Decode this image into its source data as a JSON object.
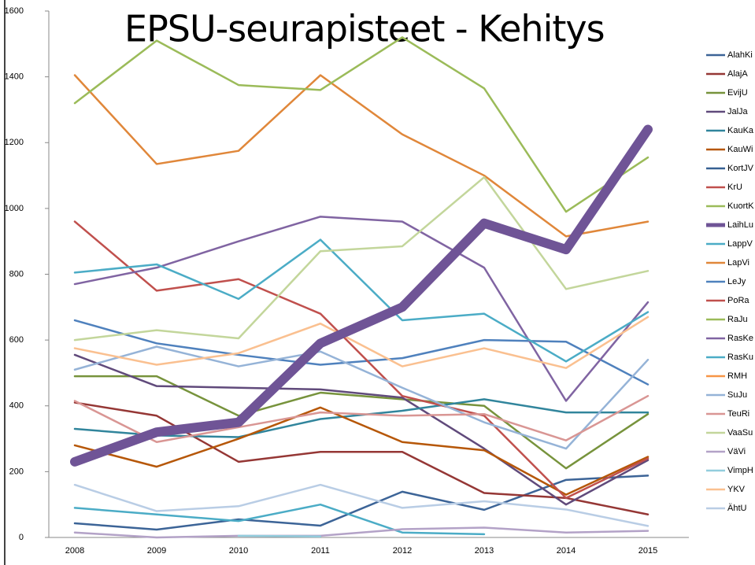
{
  "chart_data": {
    "type": "line",
    "title": "EPSU-seurapisteet - Kehitys",
    "x": [
      "2008",
      "2009",
      "2010",
      "2011",
      "2012",
      "2013",
      "2014",
      "2015"
    ],
    "ylim": [
      0,
      1600
    ],
    "yticks": [
      0,
      200,
      400,
      600,
      800,
      1000,
      1200,
      1400,
      1600
    ],
    "legend": "right",
    "series": [
      {
        "name": "AlahKi",
        "color": "#3c6497",
        "values": [
          43,
          24,
          55,
          36,
          139,
          84,
          175,
          188
        ]
      },
      {
        "name": "AlajA",
        "color": "#953735",
        "values": [
          410,
          370,
          230,
          260,
          260,
          135,
          120,
          70
        ]
      },
      {
        "name": "EvijU",
        "color": "#77933c",
        "values": [
          490,
          490,
          370,
          440,
          420,
          400,
          210,
          375
        ]
      },
      {
        "name": "JalJa",
        "color": "#604a7b",
        "values": [
          555,
          460,
          455,
          450,
          425,
          270,
          100,
          235
        ]
      },
      {
        "name": "KauKa",
        "color": "#31859c",
        "values": [
          330,
          310,
          305,
          360,
          385,
          420,
          380,
          380
        ]
      },
      {
        "name": "KauWi",
        "color": "#b65708",
        "values": [
          280,
          215,
          300,
          395,
          290,
          265,
          130,
          245
        ]
      },
      {
        "name": "KortJV",
        "color": "#376092",
        "values": [
          null,
          null,
          null,
          null,
          null,
          null,
          null,
          null
        ]
      },
      {
        "name": "KrU",
        "color": "#c0504d",
        "values": [
          null,
          null,
          null,
          null,
          null,
          null,
          null,
          null
        ]
      },
      {
        "name": "KuortK",
        "color": "#9bbb59",
        "values": [
          null,
          null,
          null,
          null,
          null,
          null,
          null,
          null
        ]
      },
      {
        "name": "LaihLu",
        "color": "#6f5496",
        "highlight": true,
        "values": [
          230,
          320,
          350,
          590,
          700,
          955,
          875,
          1240
        ]
      },
      {
        "name": "LappV",
        "color": "#4bacc6",
        "values": [
          90,
          70,
          50,
          100,
          15,
          10,
          null,
          null
        ]
      },
      {
        "name": "LapVi",
        "color": "#e0873a",
        "values": [
          1405,
          1135,
          1175,
          1405,
          1225,
          1100,
          915,
          960
        ]
      },
      {
        "name": "LeJy",
        "color": "#4f81bd",
        "values": [
          660,
          590,
          555,
          525,
          545,
          600,
          595,
          465
        ]
      },
      {
        "name": "PoRa",
        "color": "#c0504d",
        "values": [
          960,
          750,
          785,
          680,
          430,
          370,
          120,
          240
        ]
      },
      {
        "name": "RaJu",
        "color": "#9bbb59",
        "values": [
          1320,
          1510,
          1375,
          1360,
          1520,
          1365,
          990,
          1155
        ]
      },
      {
        "name": "RasKe",
        "color": "#8064a2",
        "values": [
          770,
          820,
          900,
          975,
          960,
          820,
          415,
          715
        ]
      },
      {
        "name": "RasKu",
        "color": "#4bacc6",
        "values": [
          805,
          830,
          725,
          905,
          660,
          680,
          535,
          685
        ]
      },
      {
        "name": "RMH",
        "color": "#f79646",
        "values": [
          null,
          null,
          null,
          null,
          null,
          null,
          null,
          null
        ]
      },
      {
        "name": "SuJu",
        "color": "#95b3d7",
        "values": [
          510,
          580,
          520,
          565,
          455,
          350,
          270,
          540
        ]
      },
      {
        "name": "TeuRi",
        "color": "#d99694",
        "values": [
          415,
          290,
          335,
          380,
          370,
          375,
          295,
          430
        ]
      },
      {
        "name": "VaaSu",
        "color": "#c3d69b",
        "values": [
          600,
          630,
          605,
          870,
          885,
          1095,
          755,
          810
        ]
      },
      {
        "name": "VäVi",
        "color": "#b3a2c7",
        "values": [
          15,
          0,
          5,
          5,
          25,
          30,
          15,
          20
        ]
      },
      {
        "name": "VimpH",
        "color": "#93cddd",
        "values": [
          null,
          null,
          5,
          3,
          null,
          null,
          null,
          null
        ]
      },
      {
        "name": "YKV",
        "color": "#fac090",
        "values": [
          575,
          525,
          560,
          650,
          520,
          575,
          515,
          670
        ]
      },
      {
        "name": "ÄhtU",
        "color": "#b9cde5",
        "values": [
          160,
          80,
          95,
          160,
          90,
          110,
          85,
          35
        ]
      }
    ]
  }
}
